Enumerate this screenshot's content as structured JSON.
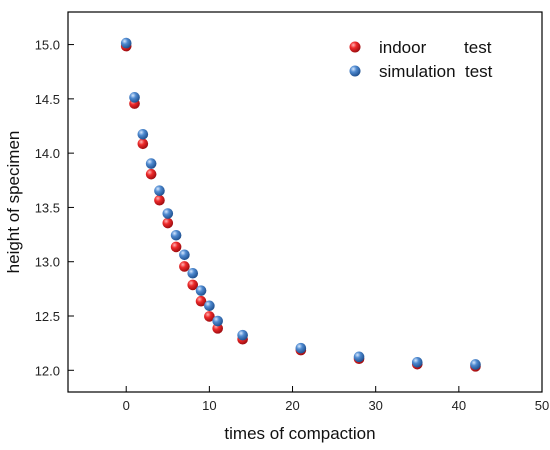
{
  "chart_data": {
    "type": "scatter",
    "title": "",
    "xlabel": "times of  compaction",
    "ylabel": "height of specimen",
    "xlim": [
      -7,
      50
    ],
    "ylim": [
      11.8,
      15.3
    ],
    "xticks": [
      0,
      10,
      20,
      30,
      40,
      50
    ],
    "yticks": [
      12.0,
      12.5,
      13.0,
      13.5,
      14.0,
      14.5,
      15.0
    ],
    "ytick_labels": [
      "12.0",
      "12.5",
      "13.0",
      "13.5",
      "14.0",
      "14.5",
      "15.0"
    ],
    "grid": false,
    "legend_position": "top-right",
    "x": [
      0,
      1,
      2,
      3,
      4,
      5,
      6,
      7,
      8,
      9,
      10,
      11,
      14,
      21,
      28,
      35,
      42
    ],
    "series": [
      {
        "name": "indoor        test",
        "color": "#e8141c",
        "values": [
          15.0,
          14.47,
          14.1,
          13.82,
          13.58,
          13.37,
          13.15,
          12.97,
          12.8,
          12.65,
          12.51,
          12.4,
          12.3,
          12.2,
          12.12,
          12.07,
          12.05
        ]
      },
      {
        "name": "simulation  test",
        "color": "#3a78c0",
        "values": [
          15.0,
          14.5,
          14.16,
          13.89,
          13.64,
          13.43,
          13.23,
          13.05,
          12.88,
          12.72,
          12.58,
          12.44,
          12.31,
          12.19,
          12.11,
          12.06,
          12.04
        ]
      }
    ]
  }
}
